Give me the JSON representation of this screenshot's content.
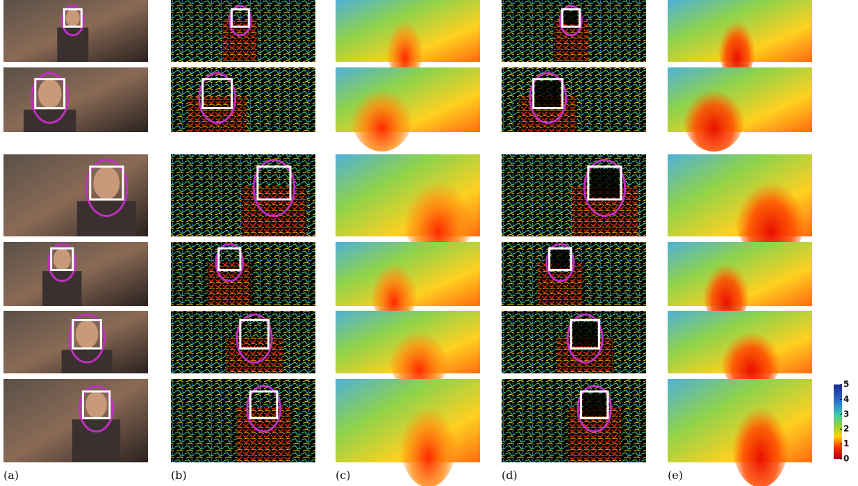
{
  "figure": {
    "column_labels": [
      "(a)",
      "(b)",
      "(c)",
      "(d)",
      "(e)"
    ],
    "colorbar": {
      "ticks": [
        0,
        1,
        2,
        3,
        4,
        5
      ]
    }
  }
}
